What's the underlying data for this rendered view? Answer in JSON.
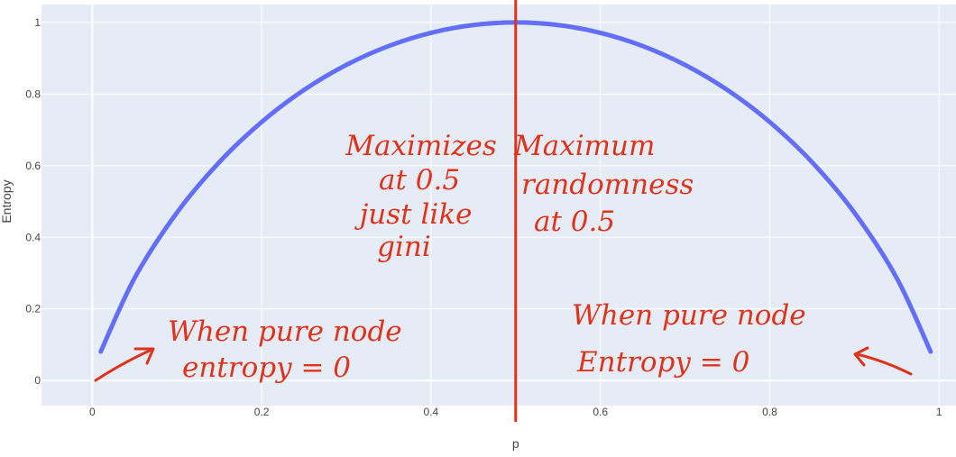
{
  "chart_data": {
    "type": "line",
    "title": "",
    "xlabel": "p",
    "ylabel": "Entropy",
    "xlim": [
      -0.06,
      1.02
    ],
    "ylim": [
      -0.07,
      1.05
    ],
    "grid": true,
    "x_ticks": [
      0,
      0.2,
      0.4,
      0.6,
      0.8,
      1
    ],
    "x_tick_labels": [
      "0",
      "0.2",
      "0.4",
      "0.6",
      "0.8",
      "1"
    ],
    "y_ticks": [
      0,
      0.2,
      0.4,
      0.6,
      0.8,
      1
    ],
    "y_tick_labels": [
      "0",
      "0.2",
      "0.4",
      "0.6",
      "0.8",
      "1"
    ],
    "series": [
      {
        "x": [
          0.01,
          0.05,
          0.1,
          0.15,
          0.2,
          0.25,
          0.3,
          0.35,
          0.4,
          0.45,
          0.5,
          0.55,
          0.6,
          0.65,
          0.7,
          0.75,
          0.8,
          0.85,
          0.9,
          0.95,
          0.99
        ],
        "y": [
          0.0808,
          0.2864,
          0.469,
          0.6098,
          0.7219,
          0.8113,
          0.8813,
          0.9341,
          0.971,
          0.9928,
          1.0,
          0.9928,
          0.971,
          0.9341,
          0.8813,
          0.8113,
          0.7219,
          0.6098,
          0.469,
          0.2864,
          0.0808
        ],
        "color": "#636efa"
      }
    ],
    "vertical_line": {
      "x": 0.5,
      "color": "#e0331c"
    },
    "annotations": {
      "left_top": [
        "Maximizes",
        "at 0.5",
        "just like",
        "gini"
      ],
      "right_top": [
        "Maximum",
        "randomness",
        "at 0.5"
      ],
      "left_bottom": [
        "When pure node",
        "entropy = 0"
      ],
      "right_bottom": [
        "When pure node",
        "Entropy = 0"
      ]
    },
    "colors": {
      "plot_bg": "#e5ecf6",
      "grid": "#ffffff",
      "line": "#636efa",
      "annotation": "#e0331c"
    }
  }
}
